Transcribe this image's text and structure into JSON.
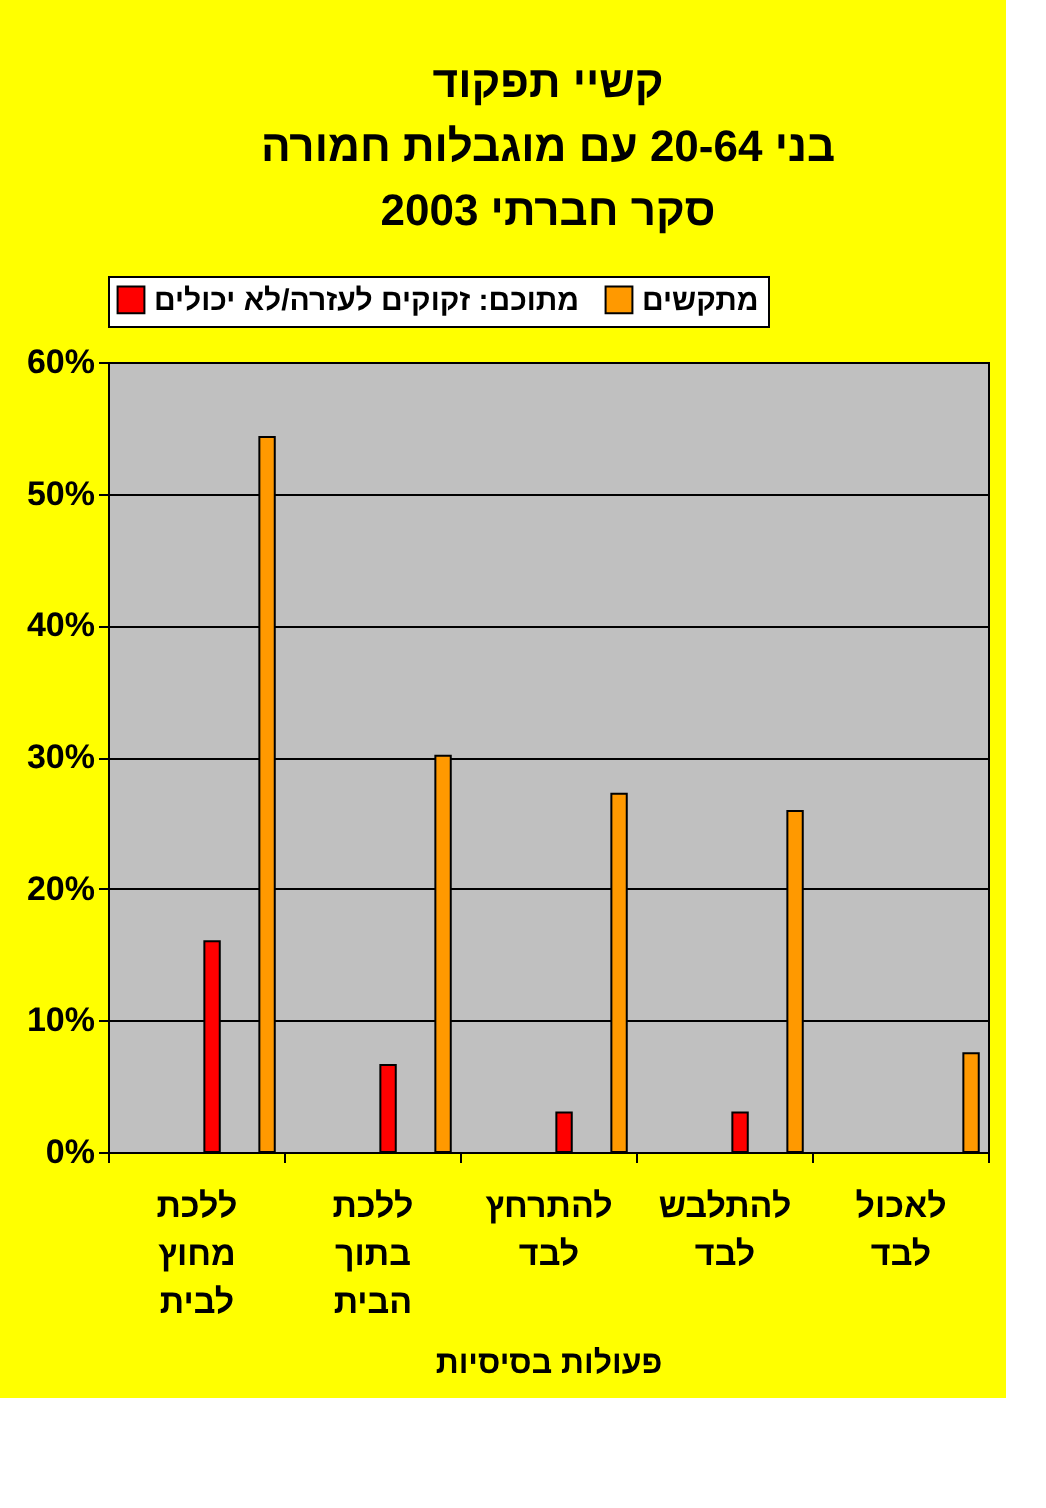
{
  "chart_data": {
    "type": "bar",
    "title": "קשיי תפקוד\nבני 20-64 עם מוגבלות חמורה\nסקר חברתי 2003",
    "xlabel": "פעולות בסיסיות",
    "categories": [
      "ללכת מחוץ לבית",
      "ללכת בתוך הבית",
      "להתרחץ לבד",
      "להתלבש לבד",
      "לאכול לבד"
    ],
    "series": [
      {
        "name": "מתוכם: זקוקים לעזרה/לא יכולים",
        "color": "#ff0000",
        "values": [
          16.0,
          6.6,
          3.0,
          3.0,
          null
        ]
      },
      {
        "name": "מתקשים",
        "color": "#ff9900",
        "values": [
          54.3,
          30.1,
          27.2,
          25.9,
          7.5
        ]
      }
    ],
    "ylim": [
      0,
      60
    ],
    "yticks": [
      {
        "value": 0,
        "label": "0%"
      },
      {
        "value": 10,
        "label": "10%"
      },
      {
        "value": 20,
        "label": "20%"
      },
      {
        "value": 30,
        "label": "30%"
      },
      {
        "value": 40,
        "label": "40%"
      },
      {
        "value": 50,
        "label": "50%"
      },
      {
        "value": 60,
        "label": "60%"
      }
    ],
    "grid": "y",
    "legend": "top"
  }
}
